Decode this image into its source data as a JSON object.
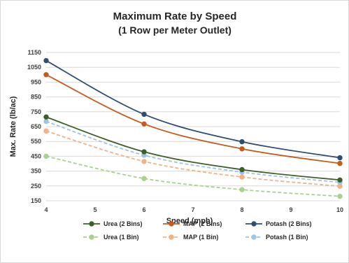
{
  "chart_data": {
    "type": "line",
    "title_line1": "Maximum Rate by Speed",
    "title_line2": "(1 Row per Meter Outlet)",
    "xlabel": "Speed (mph)",
    "ylabel": "Max. Rate (lb/ac)",
    "xlim": [
      4,
      10
    ],
    "ylim": [
      150,
      1150
    ],
    "xticks": [
      4,
      5,
      6,
      7,
      8,
      9,
      10
    ],
    "yticks": [
      150,
      250,
      350,
      450,
      550,
      650,
      750,
      850,
      950,
      1050,
      1150
    ],
    "grid": "horizontal",
    "legend_position": "bottom",
    "x": [
      4,
      6,
      8,
      10
    ],
    "series": [
      {
        "name": "Urea (2 Bins)",
        "values": [
          715,
          480,
          360,
          290
        ],
        "color": "#3d5f2a",
        "dashed": false
      },
      {
        "name": "MAP (2 Bins)",
        "values": [
          1000,
          668,
          500,
          402
        ],
        "color": "#c55a1f",
        "dashed": false
      },
      {
        "name": "Potash (2 Bins)",
        "values": [
          1095,
          733,
          548,
          440
        ],
        "color": "#2e4d74",
        "dashed": false
      },
      {
        "name": "Urea (1 Bin)",
        "values": [
          450,
          300,
          225,
          180
        ],
        "color": "#a9d18e",
        "dashed": true
      },
      {
        "name": "MAP (1 Bin)",
        "values": [
          620,
          415,
          310,
          248
        ],
        "color": "#f4b183",
        "dashed": true
      },
      {
        "name": "Potash (1 Bin)",
        "values": [
          685,
          457,
          343,
          274
        ],
        "color": "#9dc3e6",
        "dashed": true
      }
    ]
  }
}
